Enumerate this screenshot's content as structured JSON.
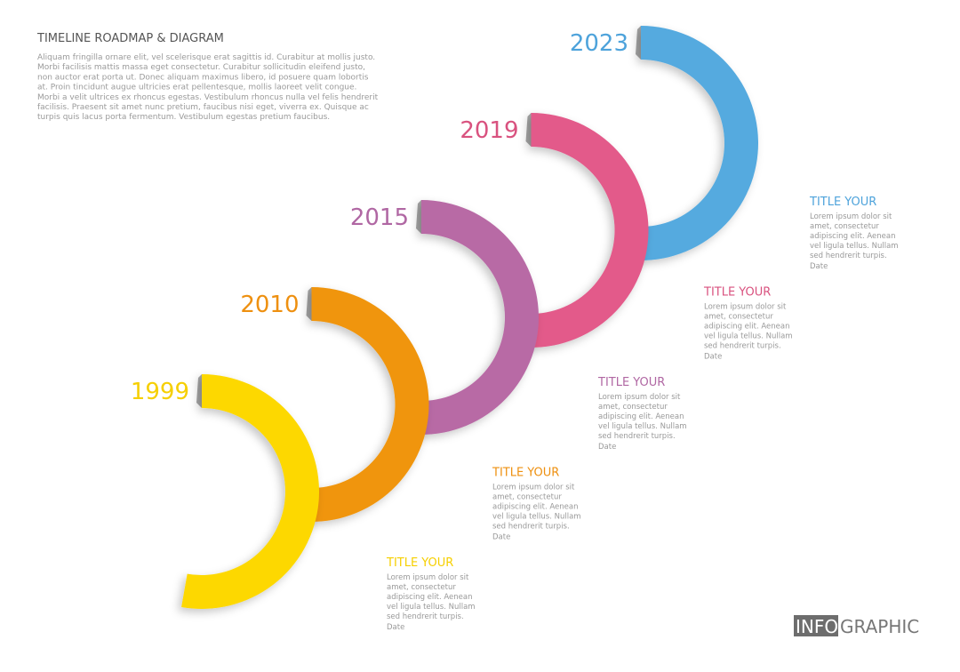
{
  "header": {
    "title": "TIMELINE ROADMAP & DIAGRAM",
    "paragraph": [
      "Aliquam fringilla ornare elit, vel scelerisque erat sagittis id. Curabitur at mollis justo.",
      "Morbi facilisis mattis massa eget consectetur. Curabitur sollicitudin eleifend justo,",
      "non auctor erat porta ut. Donec aliquam maximus libero, id posuere quam lobortis",
      "at. Proin tincidunt augue ultricies erat pellentesque, mollis laoreet velit congue.",
      "Morbi a velit ultrices ex rhoncus egestas. Vestibulum rhoncus nulla vel felis hendrerit",
      "facilisis. Praesent sit amet nunc pretium, faucibus nisi eget, viverra ex. Quisque ac",
      "turpis quis lacus porta fermentum. Vestibulum egestas pretium faucibus."
    ]
  },
  "milestones": [
    {
      "year": "1999",
      "title": "TITLE YOUR",
      "lines": [
        "Lorem ipsum dolor sit",
        "amet, consectetur",
        "adipiscing elit. Aenean",
        "vel ligula tellus. Nullam",
        "sed hendrerit turpis."
      ],
      "date": "Date"
    },
    {
      "year": "2010",
      "title": "TITLE YOUR",
      "lines": [
        "Lorem ipsum dolor sit",
        "amet, consectetur",
        "adipiscing elit. Aenean",
        "vel ligula tellus. Nullam",
        "sed hendrerit turpis."
      ],
      "date": "Date"
    },
    {
      "year": "2015",
      "title": "TITLE YOUR",
      "lines": [
        "Lorem ipsum dolor sit",
        "amet, consectetur",
        "adipiscing elit. Aenean",
        "vel ligula tellus. Nullam",
        "sed hendrerit turpis."
      ],
      "date": "Date"
    },
    {
      "year": "2019",
      "title": "TITLE YOUR",
      "lines": [
        "Lorem ipsum dolor sit",
        "amet, consectetur",
        "adipiscing elit. Aenean",
        "vel ligula tellus. Nullam",
        "sed hendrerit turpis."
      ],
      "date": "Date"
    },
    {
      "year": "2023",
      "title": "TITLE YOUR",
      "lines": [
        "Lorem ipsum dolor sit",
        "amet, consectetur",
        "adipiscing elit. Aenean",
        "vel ligula tellus. Nullam",
        "sed hendrerit turpis."
      ],
      "date": "Date"
    }
  ],
  "logo": {
    "highlight": "INFO",
    "rest": "GRAPHIC"
  }
}
